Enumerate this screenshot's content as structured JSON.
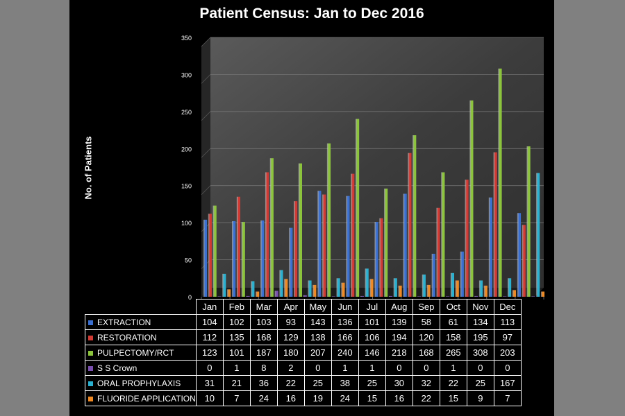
{
  "chart_data": {
    "type": "bar",
    "title": "Patient Census: Jan to Dec 2016",
    "xlabel": "",
    "ylabel": "No. of Patients",
    "ylim": [
      0,
      350
    ],
    "yticks": [
      "0",
      "50",
      "100",
      "150",
      "200",
      "250",
      "300",
      "350"
    ],
    "grid": true,
    "categories": [
      "Jan",
      "Feb",
      "Mar",
      "Apr",
      "May",
      "Jun",
      "Jul",
      "Aug",
      "Sep",
      "Oct",
      "Nov",
      "Dec"
    ],
    "series": [
      {
        "name": "EXTRACTION",
        "color": "#3a6fd0",
        "values": [
          104,
          102,
          103,
          93,
          143,
          136,
          101,
          139,
          58,
          61,
          134,
          113
        ]
      },
      {
        "name": "RESTORATION",
        "color": "#d03a34",
        "values": [
          112,
          135,
          168,
          129,
          138,
          166,
          106,
          194,
          120,
          158,
          195,
          97
        ]
      },
      {
        "name": "PULPECTOMY/RCT",
        "color": "#8cc43c",
        "values": [
          123,
          101,
          187,
          180,
          207,
          240,
          146,
          218,
          168,
          265,
          308,
          203
        ]
      },
      {
        "name": "S S Crown",
        "color": "#7a4fb0",
        "values": [
          0,
          1,
          8,
          2,
          0,
          1,
          1,
          0,
          0,
          1,
          0,
          0
        ]
      },
      {
        "name": "ORAL PROPHYLAXIS",
        "color": "#2ab0d0",
        "values": [
          31,
          21,
          36,
          22,
          25,
          38,
          25,
          30,
          32,
          22,
          25,
          167
        ]
      },
      {
        "name": "FLUORIDE APPLICATION",
        "color": "#f08a24",
        "values": [
          10,
          7,
          24,
          16,
          19,
          24,
          15,
          16,
          22,
          15,
          9,
          7
        ]
      }
    ],
    "legend": "table-below"
  }
}
